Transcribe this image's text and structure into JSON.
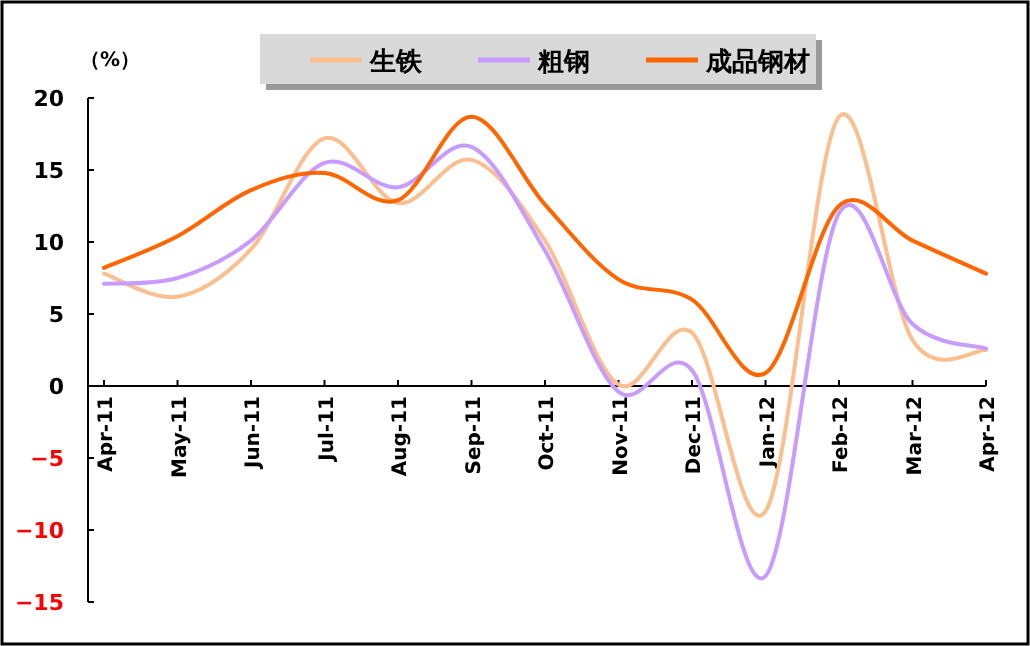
{
  "chart_data": {
    "type": "line",
    "ylabel": "（%）",
    "categories": [
      "Apr-11",
      "May-11",
      "Jun-11",
      "Jul-11",
      "Aug-11",
      "Sep-11",
      "Oct-11",
      "Nov-11",
      "Dec-11",
      "Jan-12",
      "Feb-12",
      "Mar-12",
      "Apr-12"
    ],
    "series": [
      {
        "name": "生铁",
        "color": "#fbbf8f",
        "values": [
          7.8,
          6.2,
          9.5,
          17.2,
          12.7,
          15.7,
          10.1,
          0.1,
          3.7,
          -8.7,
          18.7,
          3.2,
          2.5
        ]
      },
      {
        "name": "粗钢",
        "color": "#c89bff",
        "values": [
          7.1,
          7.5,
          10.1,
          15.5,
          13.8,
          16.6,
          9.4,
          -0.4,
          1.1,
          -13.2,
          12.0,
          4.3,
          2.6
        ]
      },
      {
        "name": "成品钢材",
        "color": "#ff6600",
        "values": [
          8.2,
          10.4,
          13.6,
          14.8,
          12.9,
          18.7,
          12.6,
          7.4,
          6.0,
          0.9,
          12.5,
          10.1,
          7.8
        ]
      }
    ],
    "ylim": [
      -15,
      20
    ],
    "yticks": [
      -15,
      -10,
      -5,
      0,
      5,
      10,
      15,
      20
    ],
    "legend": "top",
    "grid": false
  }
}
